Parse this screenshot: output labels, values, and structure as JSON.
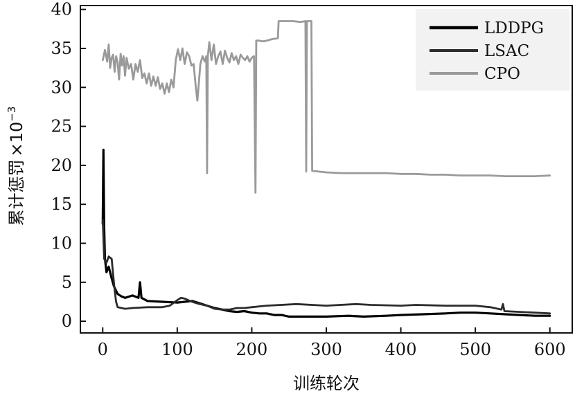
{
  "chart_data": {
    "type": "line",
    "title": "",
    "xlabel": "训练轮次",
    "ylabel": "累计惩罚",
    "ylabel_suffix": "×10",
    "ylabel_exponent": "−3",
    "xlim": [
      -30,
      630
    ],
    "ylim": [
      -1.5,
      40.5
    ],
    "xticks": [
      0,
      100,
      200,
      300,
      400,
      500,
      600
    ],
    "yticks": [
      0,
      5,
      10,
      15,
      20,
      25,
      30,
      35,
      40
    ],
    "grid": false,
    "legend_position": "top-right",
    "series": [
      {
        "name": "LDDPG",
        "color": "#000000",
        "points": [
          [
            0,
            12.5
          ],
          [
            1,
            22
          ],
          [
            2,
            12
          ],
          [
            3,
            8
          ],
          [
            5,
            6.3
          ],
          [
            8,
            7
          ],
          [
            12,
            5.5
          ],
          [
            15,
            4.5
          ],
          [
            20,
            3.5
          ],
          [
            25,
            3.2
          ],
          [
            30,
            3
          ],
          [
            40,
            3.3
          ],
          [
            48,
            3
          ],
          [
            50,
            5
          ],
          [
            52,
            3
          ],
          [
            60,
            2.6
          ],
          [
            80,
            2.5
          ],
          [
            100,
            2.4
          ],
          [
            110,
            2.5
          ],
          [
            120,
            2.6
          ],
          [
            130,
            2.3
          ],
          [
            140,
            2
          ],
          [
            150,
            1.7
          ],
          [
            160,
            1.5
          ],
          [
            170,
            1.3
          ],
          [
            180,
            1.2
          ],
          [
            190,
            1.3
          ],
          [
            200,
            1.1
          ],
          [
            210,
            1
          ],
          [
            220,
            1
          ],
          [
            230,
            0.8
          ],
          [
            240,
            0.8
          ],
          [
            250,
            0.6
          ],
          [
            270,
            0.6
          ],
          [
            300,
            0.6
          ],
          [
            330,
            0.7
          ],
          [
            350,
            0.6
          ],
          [
            380,
            0.7
          ],
          [
            400,
            0.8
          ],
          [
            430,
            0.9
          ],
          [
            460,
            1
          ],
          [
            480,
            1.1
          ],
          [
            500,
            1.1
          ],
          [
            520,
            1
          ],
          [
            540,
            0.9
          ],
          [
            560,
            0.8
          ],
          [
            580,
            0.7
          ],
          [
            600,
            0.7
          ]
        ]
      },
      {
        "name": "LSAC",
        "color": "#2b2b2b",
        "points": [
          [
            0,
            13
          ],
          [
            2,
            8
          ],
          [
            5,
            7.5
          ],
          [
            8,
            8.3
          ],
          [
            12,
            8
          ],
          [
            14,
            6
          ],
          [
            16,
            4
          ],
          [
            18,
            2.5
          ],
          [
            20,
            1.8
          ],
          [
            30,
            1.6
          ],
          [
            40,
            1.7
          ],
          [
            60,
            1.8
          ],
          [
            80,
            1.8
          ],
          [
            90,
            2
          ],
          [
            100,
            2.7
          ],
          [
            105,
            3
          ],
          [
            110,
            2.9
          ],
          [
            120,
            2.5
          ],
          [
            130,
            2.2
          ],
          [
            140,
            2
          ],
          [
            150,
            1.6
          ],
          [
            160,
            1.5
          ],
          [
            170,
            1.5
          ],
          [
            180,
            1.7
          ],
          [
            190,
            1.7
          ],
          [
            200,
            1.8
          ],
          [
            220,
            2
          ],
          [
            260,
            2.2
          ],
          [
            300,
            2
          ],
          [
            340,
            2.2
          ],
          [
            360,
            2.1
          ],
          [
            400,
            2
          ],
          [
            420,
            2.1
          ],
          [
            460,
            2
          ],
          [
            500,
            2
          ],
          [
            520,
            1.8
          ],
          [
            535,
            1.5
          ],
          [
            537,
            2.2
          ],
          [
            539,
            1.3
          ],
          [
            560,
            1.2
          ],
          [
            600,
            1
          ]
        ]
      },
      {
        "name": "CPO",
        "color": "#9a9a9a",
        "points": [
          [
            0,
            33.5
          ],
          [
            3,
            34.8
          ],
          [
            6,
            33.3
          ],
          [
            8,
            35.5
          ],
          [
            10,
            32.5
          ],
          [
            12,
            33.8
          ],
          [
            14,
            34.2
          ],
          [
            16,
            32
          ],
          [
            18,
            34
          ],
          [
            20,
            33.2
          ],
          [
            22,
            31
          ],
          [
            24,
            34.3
          ],
          [
            26,
            32.8
          ],
          [
            28,
            34
          ],
          [
            30,
            31.5
          ],
          [
            32,
            33.8
          ],
          [
            35,
            32.4
          ],
          [
            38,
            33
          ],
          [
            41,
            31
          ],
          [
            44,
            33
          ],
          [
            47,
            32
          ],
          [
            50,
            33.5
          ],
          [
            53,
            31.2
          ],
          [
            56,
            31.8
          ],
          [
            59,
            30.5
          ],
          [
            62,
            31.8
          ],
          [
            65,
            30.2
          ],
          [
            68,
            31.4
          ],
          [
            71,
            30.2
          ],
          [
            74,
            31.3
          ],
          [
            77,
            29.8
          ],
          [
            80,
            30.5
          ],
          [
            83,
            29.2
          ],
          [
            86,
            30.5
          ],
          [
            89,
            29.4
          ],
          [
            92,
            31
          ],
          [
            95,
            30
          ],
          [
            98,
            33.5
          ],
          [
            101,
            34.9
          ],
          [
            104,
            33.5
          ],
          [
            107,
            35
          ],
          [
            110,
            33
          ],
          [
            113,
            34.5
          ],
          [
            116,
            34
          ],
          [
            119,
            32.8
          ],
          [
            122,
            33
          ],
          [
            125,
            30
          ],
          [
            127,
            28.3
          ],
          [
            129,
            30.5
          ],
          [
            131,
            33
          ],
          [
            134,
            34
          ],
          [
            137,
            33.3
          ],
          [
            139,
            34
          ],
          [
            140,
            19
          ],
          [
            141,
            34
          ],
          [
            143,
            35.8
          ],
          [
            146,
            33.5
          ],
          [
            149,
            35.5
          ],
          [
            152,
            33
          ],
          [
            155,
            34
          ],
          [
            158,
            34.6
          ],
          [
            161,
            33
          ],
          [
            164,
            34.7
          ],
          [
            167,
            33.8
          ],
          [
            170,
            33.2
          ],
          [
            173,
            34.4
          ],
          [
            176,
            33.5
          ],
          [
            179,
            34
          ],
          [
            182,
            33
          ],
          [
            185,
            34.2
          ],
          [
            188,
            33.8
          ],
          [
            191,
            33.5
          ],
          [
            194,
            34
          ],
          [
            197,
            33.3
          ],
          [
            200,
            33.8
          ],
          [
            203,
            34
          ],
          [
            205,
            16.5
          ],
          [
            206,
            36
          ],
          [
            210,
            36
          ],
          [
            215,
            35.9
          ],
          [
            220,
            36
          ],
          [
            228,
            36.2
          ],
          [
            235,
            36.3
          ],
          [
            236,
            38.5
          ],
          [
            245,
            38.5
          ],
          [
            255,
            38.5
          ],
          [
            265,
            38.4
          ],
          [
            272,
            38.5
          ],
          [
            273,
            19.2
          ],
          [
            274,
            38.5
          ],
          [
            280,
            38.5
          ],
          [
            281,
            19.3
          ],
          [
            290,
            19.2
          ],
          [
            300,
            19.1
          ],
          [
            320,
            19
          ],
          [
            340,
            19
          ],
          [
            360,
            19
          ],
          [
            380,
            19
          ],
          [
            400,
            18.9
          ],
          [
            420,
            18.9
          ],
          [
            440,
            18.8
          ],
          [
            460,
            18.8
          ],
          [
            480,
            18.7
          ],
          [
            500,
            18.7
          ],
          [
            520,
            18.7
          ],
          [
            540,
            18.6
          ],
          [
            560,
            18.6
          ],
          [
            580,
            18.6
          ],
          [
            600,
            18.7
          ]
        ]
      }
    ]
  }
}
